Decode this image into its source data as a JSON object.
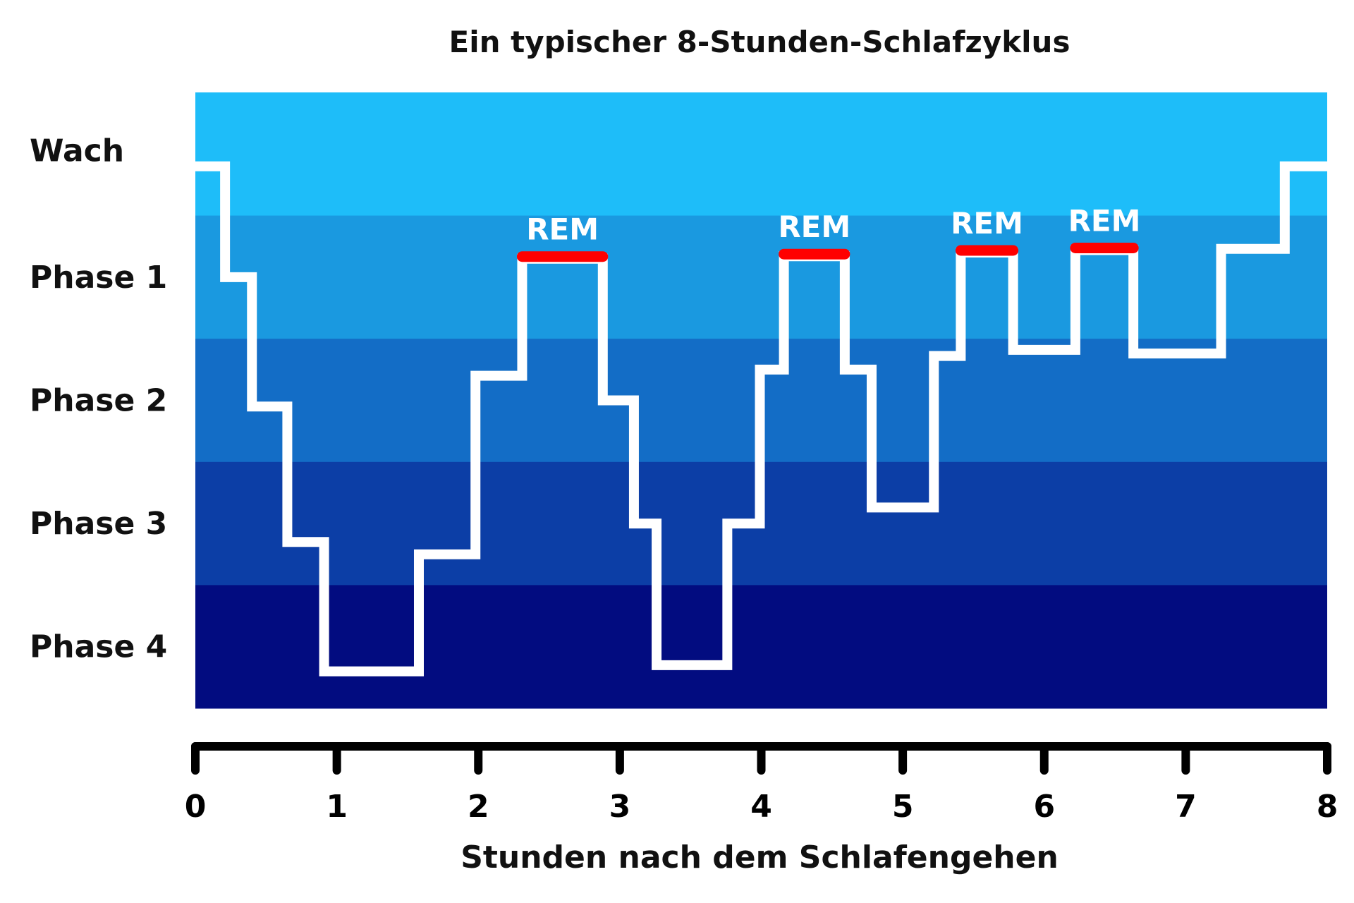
{
  "chart_data": {
    "type": "line",
    "step": true,
    "title": "Ein typischer 8-Stunden-Schlafzyklus",
    "xlabel": "Stunden nach dem Schlafengehen",
    "ylabel": "",
    "xlim": [
      0,
      8
    ],
    "x_ticks": [
      "0",
      "1",
      "2",
      "3",
      "4",
      "5",
      "6",
      "7",
      "8"
    ],
    "y_categories": [
      "Wach",
      "Phase 1",
      "Phase 2",
      "Phase 3",
      "Phase 4"
    ],
    "band_colors": [
      "#1ebdf9",
      "#1a99e0",
      "#136dc6",
      "#0c3ea6",
      "#020c80"
    ],
    "line_color": "#ffffff",
    "rem_color": "#ff0000",
    "depth_note_units": "stage index 0=Wach ... 4=Phase 4",
    "steps": [
      {
        "x0": 0.0,
        "x1": 0.21,
        "stage": 0.1
      },
      {
        "x0": 0.21,
        "x1": 0.4,
        "stage": 1.0
      },
      {
        "x0": 0.4,
        "x1": 0.65,
        "stage": 2.05
      },
      {
        "x0": 0.65,
        "x1": 0.91,
        "stage": 3.15
      },
      {
        "x0": 0.91,
        "x1": 1.58,
        "stage": 4.2
      },
      {
        "x0": 1.58,
        "x1": 1.98,
        "stage": 3.25
      },
      {
        "x0": 1.98,
        "x1": 2.31,
        "stage": 1.8
      },
      {
        "x0": 2.31,
        "x1": 2.88,
        "stage": 0.85
      },
      {
        "x0": 2.88,
        "x1": 3.1,
        "stage": 2.0
      },
      {
        "x0": 3.1,
        "x1": 3.26,
        "stage": 3.0
      },
      {
        "x0": 3.26,
        "x1": 3.76,
        "stage": 4.15
      },
      {
        "x0": 3.76,
        "x1": 3.99,
        "stage": 3.0
      },
      {
        "x0": 3.99,
        "x1": 4.16,
        "stage": 1.75
      },
      {
        "x0": 4.16,
        "x1": 4.59,
        "stage": 0.83
      },
      {
        "x0": 4.59,
        "x1": 4.78,
        "stage": 1.75
      },
      {
        "x0": 4.78,
        "x1": 5.22,
        "stage": 2.87
      },
      {
        "x0": 5.22,
        "x1": 5.41,
        "stage": 1.64
      },
      {
        "x0": 5.41,
        "x1": 5.78,
        "stage": 0.8
      },
      {
        "x0": 5.78,
        "x1": 6.22,
        "stage": 1.59
      },
      {
        "x0": 6.22,
        "x1": 6.63,
        "stage": 0.78
      },
      {
        "x0": 6.63,
        "x1": 7.25,
        "stage": 1.62
      },
      {
        "x0": 7.25,
        "x1": 7.7,
        "stage": 0.77
      },
      {
        "x0": 7.7,
        "x1": 8.0,
        "stage": 0.1
      }
    ],
    "annotations": [
      {
        "label": "REM",
        "x0": 2.31,
        "x1": 2.88,
        "stage": 0.85
      },
      {
        "label": "REM",
        "x0": 4.16,
        "x1": 4.59,
        "stage": 0.83
      },
      {
        "label": "REM",
        "x0": 5.41,
        "x1": 5.78,
        "stage": 0.8
      },
      {
        "label": "REM",
        "x0": 6.22,
        "x1": 6.63,
        "stage": 0.78
      }
    ]
  }
}
